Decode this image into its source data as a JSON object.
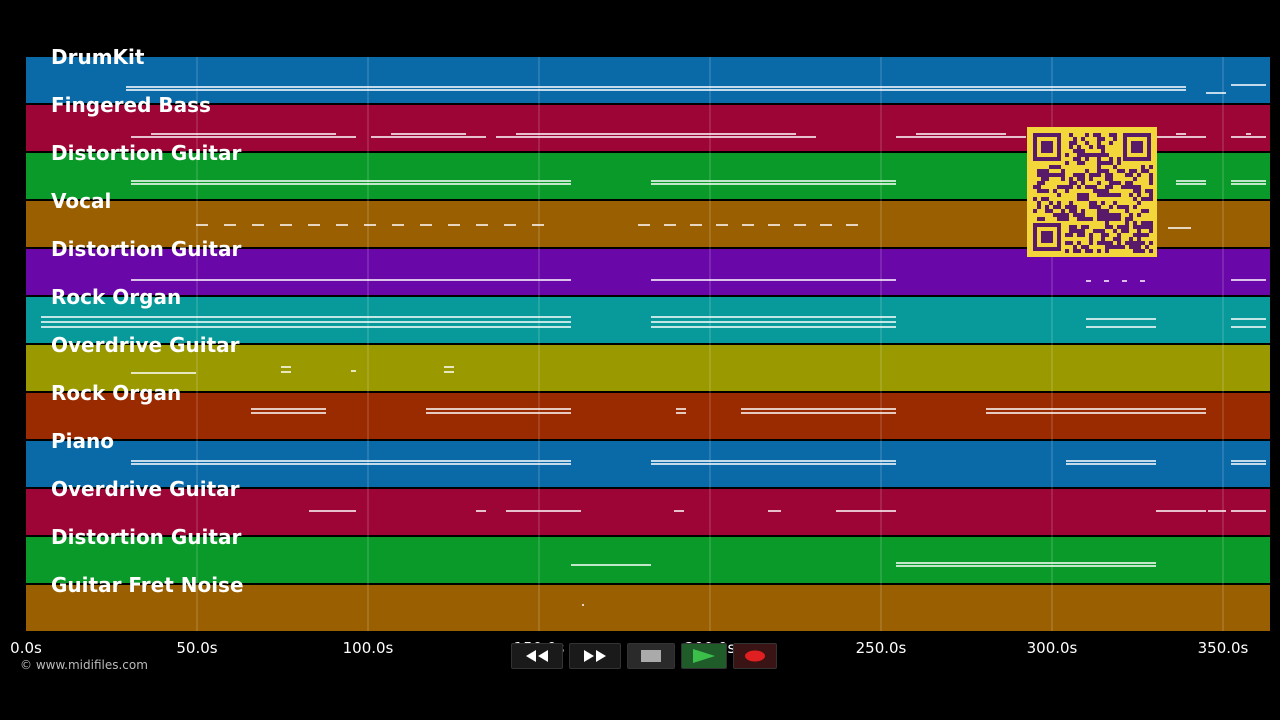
{
  "tracks": [
    {
      "name": "DrumKit",
      "color": "#0a6aa8"
    },
    {
      "name": "Fingered Bass",
      "color": "#9c0536"
    },
    {
      "name": "Distortion Guitar",
      "color": "#0a9a2a"
    },
    {
      "name": "Vocal",
      "color": "#9a5f00"
    },
    {
      "name": "Distortion Guitar",
      "color": "#6a07a8"
    },
    {
      "name": "Rock Organ",
      "color": "#089a9a"
    },
    {
      "name": "Overdrive Guitar",
      "color": "#9a9a00"
    },
    {
      "name": "Rock Organ",
      "color": "#9a2a00"
    },
    {
      "name": "Piano",
      "color": "#0a6aa8"
    },
    {
      "name": "Overdrive Guitar",
      "color": "#9c0536"
    },
    {
      "name": "Distortion Guitar",
      "color": "#0a9a2a"
    },
    {
      "name": "Guitar Fret Noise",
      "color": "#9a5f00"
    }
  ],
  "timeline": {
    "ticks": [
      "0.0s",
      "50.0s",
      "100.0s",
      "150.0s",
      "200.0s",
      "250.0s",
      "300.0s",
      "350.0s"
    ]
  },
  "copyright": "© www.midifiles.com",
  "controls": {
    "rewind": "rewind-icon",
    "fast_forward": "fast-forward-icon",
    "stop": "stop-icon",
    "play": "play-icon",
    "record": "record-icon",
    "accent_play": "#3cbf4a",
    "accent_record": "#e02020"
  },
  "qr": {
    "fg": "#5a1a6a",
    "bg": "#f2d63a"
  }
}
